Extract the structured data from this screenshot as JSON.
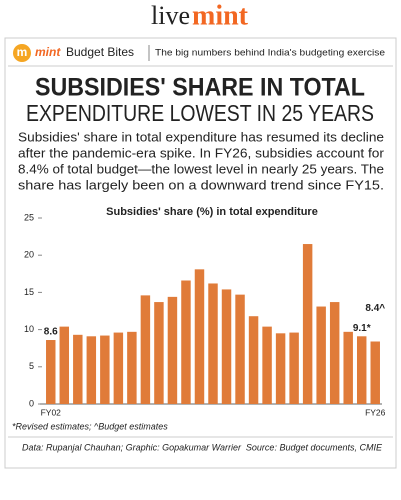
{
  "header": {
    "logo_live": "live",
    "logo_mint": "mint"
  },
  "banner": {
    "icon": "m",
    "brand": "mint",
    "series": "Budget Bites",
    "tagline": "The big numbers behind India's budgeting exercise"
  },
  "title": [
    "SUBSIDIES' SHARE IN TOTAL",
    "EXPENDITURE LOWEST IN 25 YEARS"
  ],
  "description": [
    "Subsidies' share in total expenditure has resumed its decline",
    "after the pandemic-era spike. In FY26, subsidies account for",
    "8.4% of total budget—the lowest level in nearly 25 years. The",
    "share has largely been on a downward trend since FY15."
  ],
  "chart_data": {
    "type": "bar",
    "title": "Subsidies' share (%) in total expenditure",
    "categories": [
      "FY02",
      null,
      null,
      null,
      null,
      null,
      null,
      null,
      null,
      null,
      null,
      null,
      null,
      null,
      null,
      null,
      null,
      null,
      null,
      null,
      null,
      null,
      null,
      null,
      "FY26"
    ],
    "values": [
      8.6,
      10.4,
      9.3,
      9.1,
      9.2,
      9.6,
      9.7,
      14.6,
      13.7,
      14.4,
      16.6,
      18.1,
      16.2,
      15.4,
      14.7,
      11.8,
      10.4,
      9.5,
      9.6,
      21.5,
      13.1,
      13.7,
      9.7,
      9.1,
      8.4
    ],
    "value_labels": [
      "8.6",
      null,
      null,
      null,
      null,
      null,
      null,
      null,
      null,
      null,
      null,
      null,
      null,
      null,
      null,
      null,
      null,
      null,
      null,
      null,
      null,
      null,
      null,
      "9.1*",
      "8.4^"
    ],
    "color": "#e07b39",
    "ylim": [
      0,
      25
    ],
    "yticks": [
      0,
      5,
      10,
      15,
      20,
      25
    ],
    "grid": false
  },
  "footnote": "*Revised estimates; ^Budget estimates",
  "credits": "Data: Rupanjal Chauhan; Graphic: Gopakumar Warrier",
  "source": "Source: Budget documents, CMIE"
}
